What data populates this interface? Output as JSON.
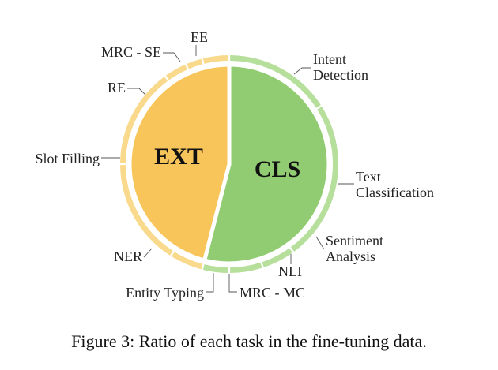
{
  "chart_data": {
    "type": "pie",
    "inner": [
      {
        "label": "EXT",
        "share": 0.46,
        "color": "#F8C55A"
      },
      {
        "label": "CLS",
        "share": 0.54,
        "color": "#92CC72"
      }
    ],
    "outer": [
      {
        "label": "EE",
        "share": 0.04,
        "group": "EXT"
      },
      {
        "label": "MRC - SE",
        "share": 0.025,
        "group": "EXT"
      },
      {
        "label": "RE",
        "share": 0.035,
        "group": "EXT"
      },
      {
        "label": "Slot Filling",
        "share": 0.15,
        "group": "EXT"
      },
      {
        "label": "NER",
        "share": 0.16,
        "group": "EXT"
      },
      {
        "label": "Entity Typing",
        "share": 0.05,
        "group": "EXT"
      },
      {
        "label": "MRC - MC",
        "share": 0.04,
        "group": "CLS"
      },
      {
        "label": "NLI",
        "share": 0.05,
        "group": "CLS"
      },
      {
        "label": "Sentiment Analysis",
        "share": 0.05,
        "group": "CLS"
      },
      {
        "label": "Text Classification",
        "share": 0.24,
        "group": "CLS"
      },
      {
        "label": "Intent Detection",
        "share": 0.16,
        "group": "CLS"
      }
    ],
    "outer_colors": {
      "EXT": "#F9D98C",
      "CLS": "#B6DF9B"
    }
  },
  "caption": "Figure 3: Ratio of each task in the fine-tuning data."
}
